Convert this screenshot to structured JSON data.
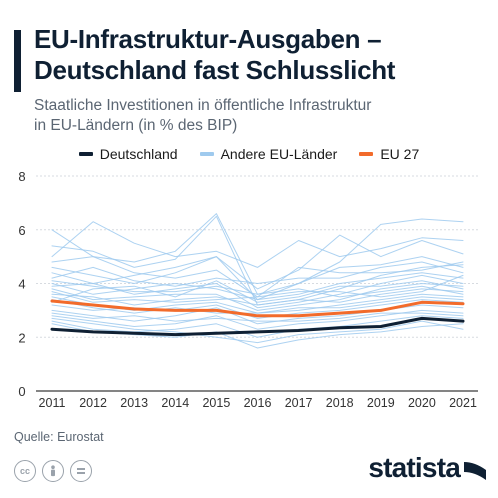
{
  "header": {
    "title_line1": "EU-Infrastruktur-Ausgaben –",
    "title_line2": "Deutschland fast Schlusslicht",
    "subtitle_line1": "Staatliche Investitionen in öffentliche Infrastruktur",
    "subtitle_line2": "in EU-Ländern (in % des BIP)"
  },
  "legend": [
    {
      "label": "Deutschland",
      "color": "#0f2033"
    },
    {
      "label": "Andere EU-Länder",
      "color": "#9fcaee"
    },
    {
      "label": "EU 27",
      "color": "#f26b2b"
    }
  ],
  "footer": {
    "source": "Quelle: Eurostat",
    "brand": "statista",
    "license_icons": [
      "cc-icon",
      "person-icon",
      "equals-icon"
    ]
  },
  "chart_data": {
    "type": "line",
    "x": [
      "2011",
      "2012",
      "2013",
      "2014",
      "2015",
      "2016",
      "2017",
      "2018",
      "2019",
      "2020",
      "2021"
    ],
    "ylim": [
      0,
      8
    ],
    "yticks": [
      "0",
      "2",
      "4",
      "6",
      "8"
    ],
    "grid": true,
    "legend_position": "top",
    "series": [
      {
        "name": "Deutschland",
        "color": "#0f2033",
        "values": [
          2.3,
          2.2,
          2.15,
          2.1,
          2.15,
          2.2,
          2.25,
          2.35,
          2.4,
          2.7,
          2.6
        ]
      },
      {
        "name": "EU 27",
        "color": "#f26b2b",
        "values": [
          3.35,
          3.2,
          3.05,
          3.0,
          3.0,
          2.8,
          2.8,
          2.9,
          3.0,
          3.3,
          3.25
        ]
      },
      {
        "name": "Andere EU-Länder",
        "color": "#9fcaee",
        "values": [
          6.0,
          5.0,
          4.8,
          5.2,
          6.6,
          3.6,
          4.0,
          4.8,
          6.2,
          6.4,
          6.3
        ]
      },
      {
        "name": "Andere EU-Länder",
        "color": "#9fcaee",
        "values": [
          5.4,
          5.2,
          4.6,
          4.9,
          6.5,
          3.2,
          3.4,
          3.8,
          4.3,
          4.6,
          4.7
        ]
      },
      {
        "name": "Andere EU-Länder",
        "color": "#9fcaee",
        "values": [
          5.0,
          6.3,
          5.5,
          5.0,
          5.2,
          4.6,
          5.6,
          5.0,
          5.3,
          5.7,
          5.6
        ]
      },
      {
        "name": "Andere EU-Länder",
        "color": "#9fcaee",
        "values": [
          4.6,
          4.3,
          4.0,
          4.4,
          5.0,
          3.8,
          4.5,
          5.8,
          5.0,
          5.6,
          5.1
        ]
      },
      {
        "name": "Andere EU-Länder",
        "color": "#9fcaee",
        "values": [
          4.4,
          4.0,
          4.3,
          4.6,
          5.0,
          3.4,
          4.0,
          4.6,
          4.7,
          5.0,
          4.6
        ]
      },
      {
        "name": "Andere EU-Länder",
        "color": "#9fcaee",
        "values": [
          4.2,
          4.6,
          4.1,
          3.9,
          4.2,
          4.0,
          4.2,
          4.2,
          4.6,
          4.8,
          4.4
        ]
      },
      {
        "name": "Andere EU-Länder",
        "color": "#9fcaee",
        "values": [
          4.0,
          3.6,
          3.8,
          4.0,
          3.8,
          3.4,
          3.6,
          4.0,
          4.2,
          4.4,
          4.2
        ]
      },
      {
        "name": "Andere EU-Länder",
        "color": "#9fcaee",
        "values": [
          3.9,
          4.0,
          3.6,
          3.8,
          4.0,
          3.1,
          3.3,
          3.6,
          4.0,
          4.3,
          4.0
        ]
      },
      {
        "name": "Andere EU-Länder",
        "color": "#9fcaee",
        "values": [
          3.8,
          3.4,
          3.5,
          3.6,
          3.6,
          3.0,
          3.2,
          3.4,
          3.8,
          4.0,
          3.9
        ]
      },
      {
        "name": "Andere EU-Länder",
        "color": "#9fcaee",
        "values": [
          3.6,
          3.5,
          3.2,
          3.4,
          3.5,
          3.2,
          3.4,
          3.3,
          3.6,
          3.8,
          3.7
        ]
      },
      {
        "name": "Andere EU-Länder",
        "color": "#9fcaee",
        "values": [
          3.5,
          3.2,
          3.0,
          3.2,
          3.3,
          2.9,
          3.0,
          3.2,
          3.4,
          3.6,
          3.5
        ]
      },
      {
        "name": "Andere EU-Länder",
        "color": "#9fcaee",
        "values": [
          3.2,
          3.0,
          3.1,
          3.0,
          3.2,
          2.7,
          2.9,
          3.0,
          3.2,
          3.4,
          3.3
        ]
      },
      {
        "name": "Andere EU-Länder",
        "color": "#9fcaee",
        "values": [
          3.0,
          2.8,
          2.6,
          2.8,
          3.1,
          2.5,
          2.7,
          2.8,
          3.0,
          3.2,
          3.1
        ]
      },
      {
        "name": "Andere EU-Länder",
        "color": "#9fcaee",
        "values": [
          2.8,
          2.6,
          2.4,
          2.5,
          2.8,
          2.3,
          2.5,
          2.6,
          2.8,
          3.0,
          2.9
        ]
      },
      {
        "name": "Andere EU-Länder",
        "color": "#9fcaee",
        "values": [
          2.6,
          2.3,
          2.2,
          2.3,
          2.5,
          2.0,
          2.3,
          2.4,
          2.6,
          2.8,
          2.7
        ]
      },
      {
        "name": "Andere EU-Länder",
        "color": "#9fcaee",
        "values": [
          2.5,
          2.2,
          2.1,
          2.0,
          2.2,
          1.6,
          1.9,
          2.1,
          2.2,
          2.4,
          2.5
        ]
      },
      {
        "name": "Andere EU-Länder",
        "color": "#9fcaee",
        "values": [
          4.8,
          5.0,
          4.4,
          4.2,
          4.5,
          3.5,
          4.6,
          4.4,
          4.4,
          4.5,
          4.8
        ]
      },
      {
        "name": "Andere EU-Länder",
        "color": "#9fcaee",
        "values": [
          3.3,
          3.8,
          3.9,
          3.5,
          4.1,
          3.3,
          3.5,
          3.9,
          3.9,
          4.1,
          3.8
        ]
      },
      {
        "name": "Andere EU-Länder",
        "color": "#9fcaee",
        "values": [
          2.9,
          2.7,
          2.8,
          2.6,
          2.7,
          2.6,
          2.6,
          2.7,
          2.9,
          2.9,
          2.8
        ]
      },
      {
        "name": "Andere EU-Länder",
        "color": "#9fcaee",
        "values": [
          3.4,
          3.1,
          2.9,
          3.1,
          2.9,
          2.9,
          3.1,
          3.1,
          3.3,
          3.5,
          3.4
        ]
      },
      {
        "name": "Andere EU-Länder",
        "color": "#9fcaee",
        "values": [
          4.1,
          3.9,
          3.7,
          3.7,
          3.9,
          3.6,
          3.8,
          3.5,
          3.7,
          3.9,
          3.6
        ]
      },
      {
        "name": "Andere EU-Länder",
        "color": "#9fcaee",
        "values": [
          2.7,
          2.5,
          2.3,
          2.2,
          2.0,
          1.8,
          2.1,
          2.2,
          2.3,
          2.6,
          2.3
        ]
      },
      {
        "name": "Andere EU-Länder",
        "color": "#9fcaee",
        "values": [
          3.7,
          3.3,
          3.4,
          3.3,
          3.4,
          3.5,
          3.7,
          3.7,
          3.5,
          3.7,
          4.3
        ]
      }
    ]
  }
}
